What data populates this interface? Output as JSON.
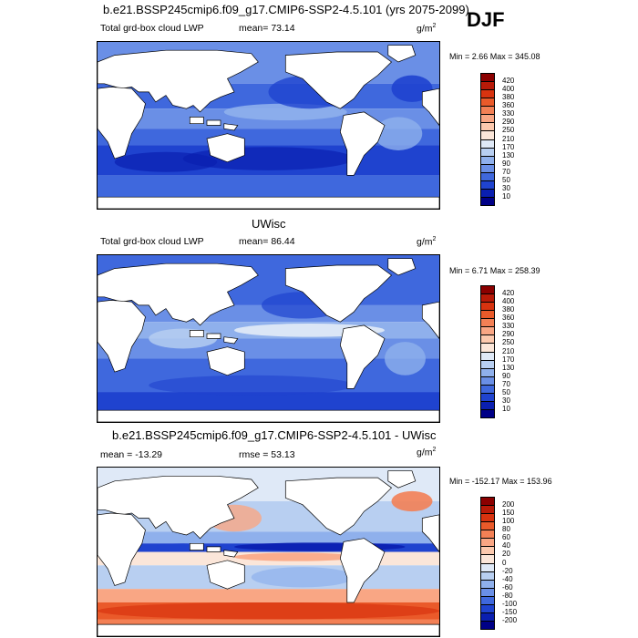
{
  "header": {
    "title": "b.e21.BSSP245cmip6.f09_g17.CMIP6-SSP2-4.5.101 (yrs 2075-2099)",
    "season": "DJF"
  },
  "panels": [
    {
      "id": "model",
      "heading": "",
      "left_label": "Total grd-box cloud LWP",
      "mid_label": "mean=  73.14",
      "units": "g/m",
      "units_exp": "2",
      "minmax": "Min =   2.66 Max = 345.08",
      "colorbar": {
        "labels": [
          "420",
          "400",
          "380",
          "360",
          "330",
          "290",
          "250",
          "210",
          "170",
          "130",
          "90",
          "70",
          "50",
          "30",
          "10"
        ],
        "colors": [
          "#8b0000",
          "#b81a08",
          "#d8330f",
          "#ea5a2a",
          "#f38055",
          "#f9a684",
          "#fcc9ae",
          "#fbe6d9",
          "#dfe9f7",
          "#b8cff1",
          "#8fb0ec",
          "#6a8fe6",
          "#3f68dd",
          "#1f43cf",
          "#0a1fb0",
          "#000087"
        ]
      }
    },
    {
      "id": "obs",
      "heading": "UWisc",
      "left_label": "Total grd-box cloud LWP",
      "mid_label": "mean=  86.44",
      "units": "g/m",
      "units_exp": "2",
      "minmax": "Min =   6.71 Max = 258.39",
      "colorbar": {
        "labels": [
          "420",
          "400",
          "380",
          "360",
          "330",
          "290",
          "250",
          "210",
          "170",
          "130",
          "90",
          "70",
          "50",
          "30",
          "10"
        ],
        "colors": [
          "#8b0000",
          "#b81a08",
          "#d8330f",
          "#ea5a2a",
          "#f38055",
          "#f9a684",
          "#fcc9ae",
          "#fbe6d9",
          "#dfe9f7",
          "#b8cff1",
          "#8fb0ec",
          "#6a8fe6",
          "#3f68dd",
          "#1f43cf",
          "#0a1fb0",
          "#000087"
        ]
      }
    },
    {
      "id": "diff",
      "heading": "b.e21.BSSP245cmip6.f09_g17.CMIP6-SSP2-4.5.101 - UWisc",
      "left_label": "mean = -13.29",
      "mid_label": "rmse =  53.13",
      "units": "g/m",
      "units_exp": "2",
      "minmax": "Min = -152.17 Max = 153.96",
      "colorbar": {
        "labels": [
          "200",
          "150",
          "100",
          "80",
          "60",
          "40",
          "20",
          "0",
          "-20",
          "-40",
          "-60",
          "-80",
          "-100",
          "-150",
          "-200"
        ],
        "colors": [
          "#8b0000",
          "#b81a08",
          "#d8330f",
          "#ea5a2a",
          "#f38055",
          "#f9a684",
          "#fcc9ae",
          "#fbe6d9",
          "#dfe9f7",
          "#b8cff1",
          "#8fb0ec",
          "#6a8fe6",
          "#3f68dd",
          "#1f43cf",
          "#0a1fb0",
          "#000087"
        ]
      }
    }
  ],
  "chart_data": [
    {
      "type": "heatmap",
      "title": "b.e21.BSSP245cmip6.f09_g17.CMIP6-SSP2-4.5.101 (yrs 2075-2099)",
      "variable": "Total grd-box cloud LWP",
      "units": "g/m2",
      "season": "DJF",
      "mean": 73.14,
      "min": 2.66,
      "max": 345.08,
      "levels": [
        10,
        30,
        50,
        70,
        90,
        130,
        170,
        210,
        250,
        290,
        330,
        360,
        380,
        400,
        420
      ]
    },
    {
      "type": "heatmap",
      "title": "UWisc",
      "variable": "Total grd-box cloud LWP",
      "units": "g/m2",
      "mean": 86.44,
      "min": 6.71,
      "max": 258.39,
      "levels": [
        10,
        30,
        50,
        70,
        90,
        130,
        170,
        210,
        250,
        290,
        330,
        360,
        380,
        400,
        420
      ]
    },
    {
      "type": "heatmap",
      "title": "b.e21.BSSP245cmip6.f09_g17.CMIP6-SSP2-4.5.101 - UWisc",
      "units": "g/m2",
      "mean": -13.29,
      "rmse": 53.13,
      "min": -152.17,
      "max": 153.96,
      "levels": [
        -200,
        -150,
        -100,
        -80,
        -60,
        -40,
        -20,
        0,
        20,
        40,
        60,
        80,
        100,
        150,
        200
      ]
    }
  ]
}
